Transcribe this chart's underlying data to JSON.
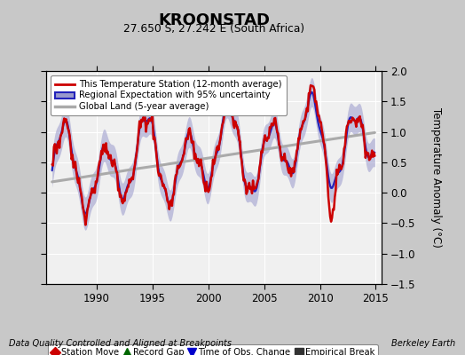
{
  "title": "KROONSTAD",
  "subtitle": "27.650 S, 27.242 E (South Africa)",
  "ylabel": "Temperature Anomaly (°C)",
  "xlabel_left": "Data Quality Controlled and Aligned at Breakpoints",
  "xlabel_right": "Berkeley Earth",
  "ylim": [
    -1.5,
    2.0
  ],
  "xlim": [
    1985.5,
    2015.5
  ],
  "xticks": [
    1990,
    1995,
    2000,
    2005,
    2010,
    2015
  ],
  "yticks": [
    -1.5,
    -1.0,
    -0.5,
    0.0,
    0.5,
    1.0,
    1.5,
    2.0
  ],
  "bg_color": "#c8c8c8",
  "plot_bg_color": "#f0f0f0",
  "grid_color": "white",
  "regional_line_color": "#2222bb",
  "regional_fill_color": "#9999cc",
  "station_line_color": "#cc0000",
  "global_line_color": "#aaaaaa",
  "legend1_items": [
    {
      "label": "This Temperature Station (12-month average)",
      "color": "#cc0000",
      "lw": 2.0
    },
    {
      "label": "Regional Expectation with 95% uncertainty",
      "color": "#2222bb",
      "lw": 2.0
    },
    {
      "label": "Global Land (5-year average)",
      "color": "#aaaaaa",
      "lw": 2.5
    }
  ],
  "legend2_items": [
    {
      "label": "Station Move",
      "marker": "D",
      "color": "#cc0000"
    },
    {
      "label": "Record Gap",
      "marker": "^",
      "color": "#006600"
    },
    {
      "label": "Time of Obs. Change",
      "marker": "v",
      "color": "#0000cc"
    },
    {
      "label": "Empirical Break",
      "marker": "s",
      "color": "#333333"
    }
  ]
}
